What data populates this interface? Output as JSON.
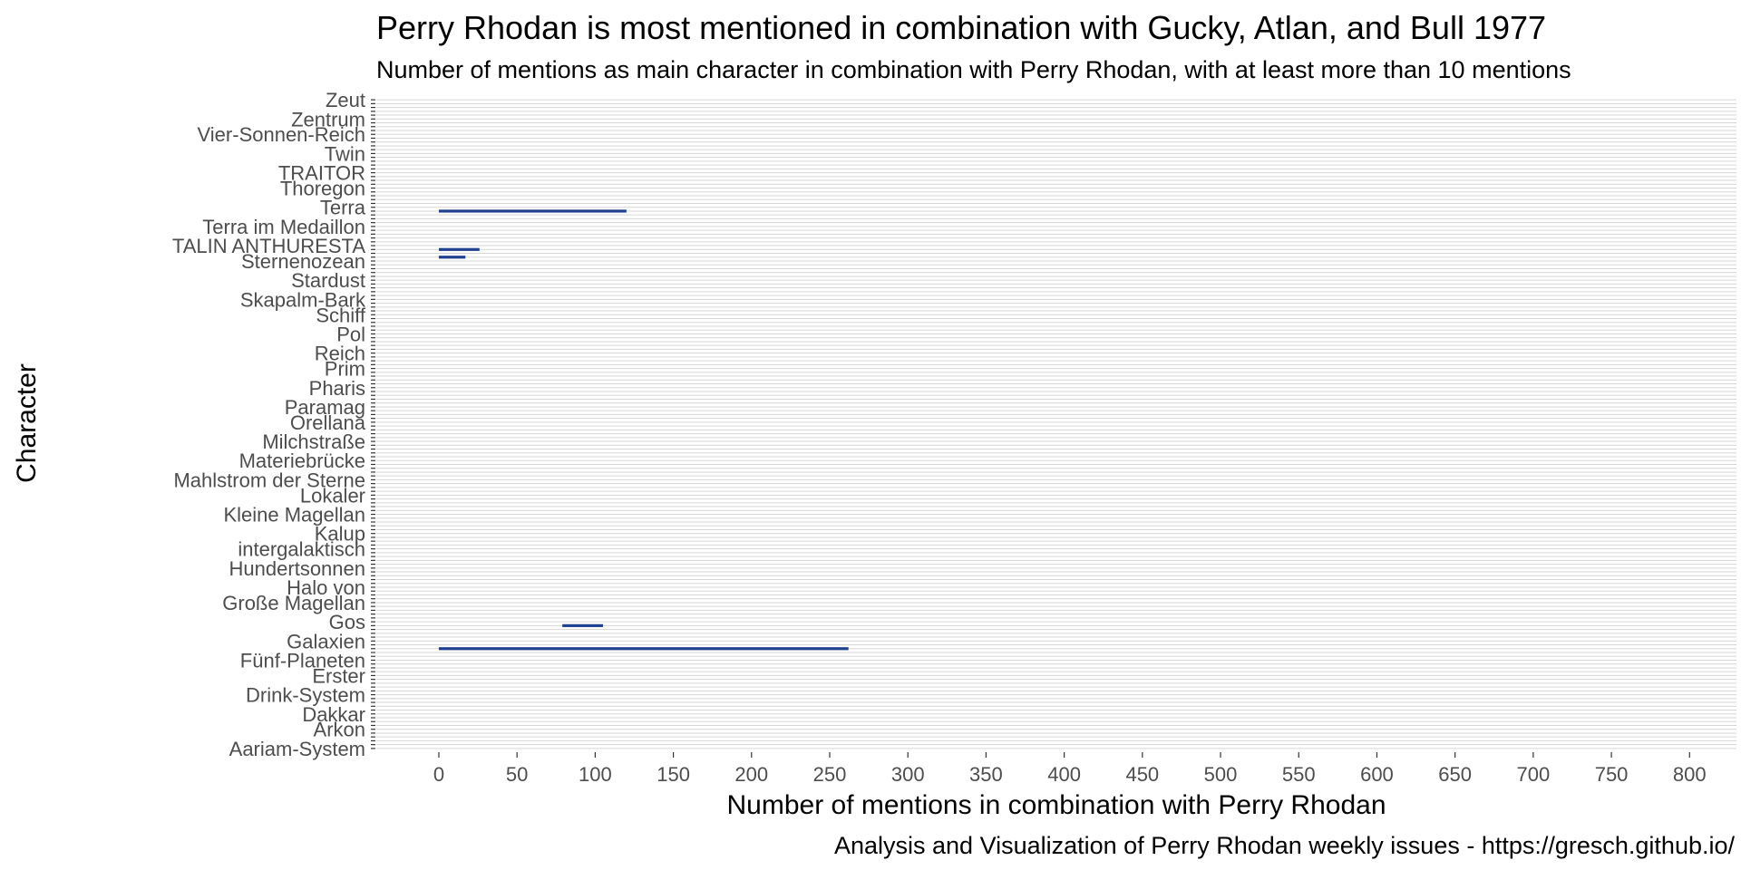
{
  "chart_data": {
    "type": "bar",
    "title": "Perry Rhodan is most mentioned in combination with Gucky, Atlan, and Bull 1977",
    "subtitle": "Number of mentions as main character in combination with Perry Rhodan, with at least more than 10 mentions",
    "xlabel": "Number of mentions in combination with Perry Rhodan",
    "ylabel": "Character",
    "caption": "Analysis and Visualization of Perry Rhodan weekly issues - https://gresch.github.io/",
    "xlim": [
      -40,
      830
    ],
    "xticks": [
      0,
      50,
      100,
      150,
      200,
      250,
      300,
      350,
      400,
      450,
      500,
      550,
      600,
      650,
      700,
      750,
      800
    ],
    "grid": "horizontal",
    "legend": "none",
    "bar_color": "#1f3f8f",
    "category_count": 170,
    "categories_visible": [
      "Aariam-System",
      "Arkon",
      "Dakkar",
      "Drink-System",
      "Erster",
      "Fünf-Planeten",
      "Galaxien",
      "Gos",
      "Große Magellan",
      "Halo von",
      "Hundertsonnen",
      "intergalaktisch",
      "Kalup",
      "Kleine Magellan",
      "Lokaler",
      "Mahlstrom der Sterne",
      "Materiebrücke",
      "Milchstraße",
      "Orellana",
      "Paramag",
      "Pharis",
      "Prim",
      "Reich",
      "Pol",
      "Schiff",
      "Skapalm-Bark",
      "Stardust",
      "Sternenozean",
      "TALIN ANTHURESTA",
      "Terra im Medaillon",
      "Terra",
      "Thoregon",
      "TRAITOR",
      "Twin",
      "Vier-Sonnen-Reich",
      "Zentrum",
      "Zeut"
    ],
    "bars": [
      {
        "index": 140,
        "start": 0,
        "end": 120
      },
      {
        "index": 130,
        "start": 0,
        "end": 26
      },
      {
        "index": 128,
        "start": 0,
        "end": 17
      },
      {
        "index": 32,
        "start": 79,
        "end": 105
      },
      {
        "index": 26,
        "start": 0,
        "end": 262
      }
    ]
  }
}
